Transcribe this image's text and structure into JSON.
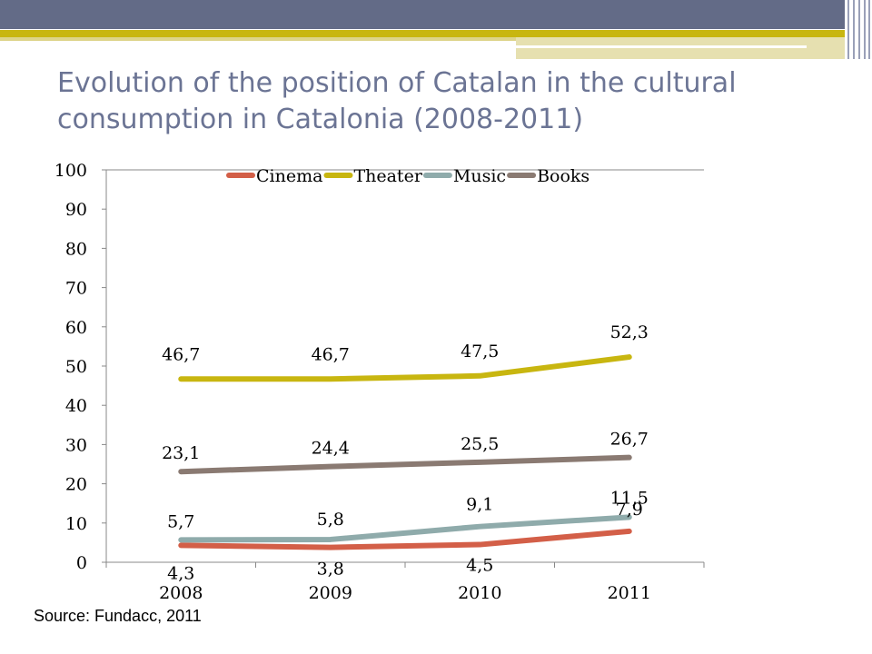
{
  "title": "Evolution of the position of Catalan in the cultural consumption in Catalonia (2008-2011)",
  "source": "Source: Fundacc, 2011",
  "chart_data": {
    "type": "line",
    "title": "",
    "xlabel": "",
    "ylabel": "",
    "categories": [
      "2008",
      "2009",
      "2010",
      "2011"
    ],
    "ylim": [
      0,
      100
    ],
    "yticks": [
      "0",
      "10",
      "20",
      "30",
      "40",
      "50",
      "60",
      "70",
      "80",
      "90",
      "100"
    ],
    "grid": false,
    "legend": "top",
    "series": [
      {
        "name": "Cinema",
        "color": "#d35f48",
        "values": [
          4.3,
          3.8,
          4.5,
          7.9
        ],
        "labels": [
          "4,3",
          "3,8",
          "4,5",
          "7,9"
        ]
      },
      {
        "name": "Theater",
        "color": "#c8b610",
        "values": [
          46.7,
          46.7,
          47.5,
          52.3
        ],
        "labels": [
          "46,7",
          "46,7",
          "47,5",
          "52,3"
        ]
      },
      {
        "name": "Music",
        "color": "#8fabab",
        "values": [
          5.7,
          5.8,
          9.1,
          11.5
        ],
        "labels": [
          "5,7",
          "5,8",
          "9,1",
          "11,5"
        ]
      },
      {
        "name": "Books",
        "color": "#8a7a72",
        "values": [
          23.1,
          24.4,
          25.5,
          26.7
        ],
        "labels": [
          "23,1",
          "24,4",
          "25,5",
          "26,7"
        ]
      }
    ]
  }
}
